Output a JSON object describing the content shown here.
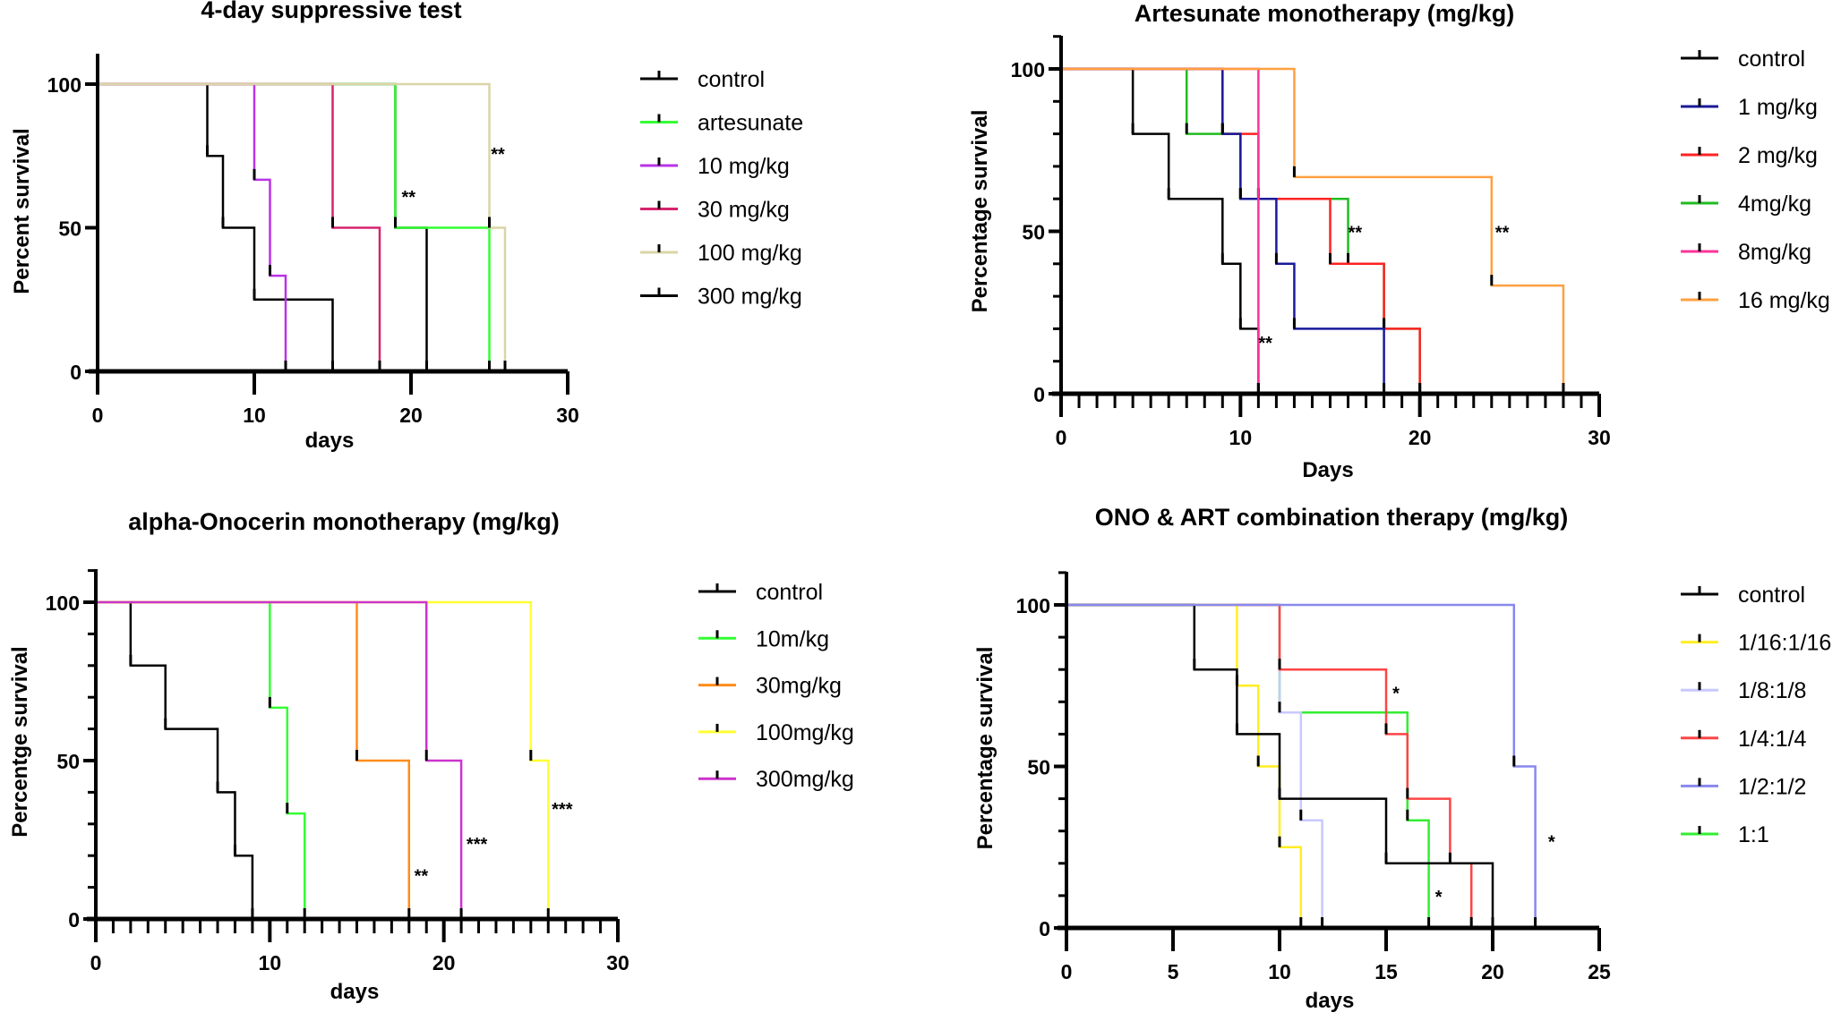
{
  "chart_data": [
    {
      "type": "line",
      "subtype": "kaplan-meier survival",
      "title": "4-day suppressive test",
      "xlabel": "days",
      "ylabel": "Percent survival",
      "xlim": [
        0,
        30
      ],
      "ylim": [
        0,
        100
      ],
      "xticks": [
        "0",
        "10",
        "20",
        "30"
      ],
      "yticks": [
        "0",
        "50",
        "100"
      ],
      "legend_position": "right",
      "series": [
        {
          "name": "control",
          "color": "#000000",
          "steps": [
            [
              0,
              100
            ],
            [
              7,
              75
            ],
            [
              8,
              50
            ],
            [
              10,
              25
            ],
            [
              15,
              0
            ]
          ]
        },
        {
          "name": "300 mg/kg",
          "color": "#000000",
          "steps": [
            [
              0,
              100
            ],
            [
              19,
              50
            ],
            [
              21,
              0
            ]
          ]
        },
        {
          "name": "artesunate",
          "color": "#33ff33",
          "steps": [
            [
              0,
              100
            ],
            [
              19,
              50
            ],
            [
              25,
              0
            ]
          ]
        },
        {
          "name": "10 mg/kg",
          "color": "#b833e6",
          "steps": [
            [
              0,
              100
            ],
            [
              10,
              66.7
            ],
            [
              11,
              33.3
            ],
            [
              12,
              0
            ]
          ]
        },
        {
          "name": "30 mg/kg",
          "color": "#d6246e",
          "steps": [
            [
              0,
              100
            ],
            [
              15,
              50
            ],
            [
              18,
              0
            ]
          ]
        },
        {
          "name": "100 mg/kg",
          "color": "#d9d5a7",
          "steps": [
            [
              0,
              100
            ],
            [
              25,
              50
            ],
            [
              26,
              0
            ]
          ]
        }
      ],
      "legend_order": [
        "control",
        "artesunate",
        "10 mg/kg",
        "30 mg/kg",
        "100 mg/kg",
        "300 mg/kg"
      ],
      "annotations": [
        {
          "text": "**",
          "x": 19.4,
          "y": 61
        },
        {
          "text": "**",
          "x": 25.1,
          "y": 76
        }
      ]
    },
    {
      "type": "line",
      "subtype": "kaplan-meier survival",
      "title": "Artesunate monotherapy (mg/kg)",
      "xlabel": "Days",
      "ylabel": "Percentage survival",
      "xlim": [
        0,
        30
      ],
      "ylim": [
        0,
        100
      ],
      "xticks": [
        "0",
        "10",
        "20",
        "30"
      ],
      "yticks": [
        "0",
        "50",
        "100"
      ],
      "legend_position": "right",
      "series": [
        {
          "name": "4mg/kg",
          "color": "#22bb22",
          "steps": [
            [
              0,
              100
            ],
            [
              7,
              80
            ],
            [
              10,
              60
            ],
            [
              16,
              40
            ],
            [
              18,
              20
            ],
            [
              20,
              0
            ]
          ]
        },
        {
          "name": "2 mg/kg",
          "color": "#ff2222",
          "steps": [
            [
              0,
              100
            ],
            [
              9,
              80
            ],
            [
              11,
              60
            ],
            [
              15,
              40
            ],
            [
              18,
              20
            ],
            [
              20,
              0
            ]
          ]
        },
        {
          "name": "1 mg/kg",
          "color": "#1a1a99",
          "steps": [
            [
              0,
              100
            ],
            [
              9,
              80
            ],
            [
              10,
              60
            ],
            [
              12,
              40
            ],
            [
              13,
              20
            ],
            [
              18,
              0
            ]
          ]
        },
        {
          "name": "control",
          "color": "#000000",
          "steps": [
            [
              0,
              100
            ],
            [
              4,
              80
            ],
            [
              6,
              60
            ],
            [
              9,
              40
            ],
            [
              10,
              20
            ],
            [
              11,
              0
            ]
          ]
        },
        {
          "name": "8mg/kg",
          "color": "#ff3399",
          "steps": [
            [
              0,
              100
            ],
            [
              11,
              0
            ]
          ]
        },
        {
          "name": "16 mg/kg",
          "color": "#ffa040",
          "steps": [
            [
              0,
              100
            ],
            [
              13,
              66.7
            ],
            [
              24,
              33.3
            ],
            [
              28,
              0
            ]
          ]
        }
      ],
      "legend_order": [
        "control",
        "1 mg/kg",
        "2 mg/kg",
        "4mg/kg",
        "8mg/kg",
        "16 mg/kg"
      ],
      "annotations": [
        {
          "text": "**",
          "x": 11.0,
          "y": 16
        },
        {
          "text": "**",
          "x": 16.0,
          "y": 50
        },
        {
          "text": "**",
          "x": 24.2,
          "y": 50
        }
      ]
    },
    {
      "type": "line",
      "subtype": "kaplan-meier survival",
      "title": "alpha-Onocerin monotherapy (mg/kg)",
      "xlabel": "days",
      "ylabel": "Percentge survival",
      "xlim": [
        0,
        30
      ],
      "ylim": [
        0,
        100
      ],
      "xticks": [
        "0",
        "10",
        "20",
        "30"
      ],
      "yticks": [
        "0",
        "50",
        "100"
      ],
      "legend_position": "right",
      "series": [
        {
          "name": "control",
          "color": "#000000",
          "steps": [
            [
              0,
              100
            ],
            [
              2,
              80
            ],
            [
              4,
              60
            ],
            [
              7,
              40
            ],
            [
              8,
              20
            ],
            [
              9,
              0
            ]
          ]
        },
        {
          "name": "10m/kg",
          "color": "#33ff33",
          "steps": [
            [
              0,
              100
            ],
            [
              10,
              66.7
            ],
            [
              11,
              33.3
            ],
            [
              12,
              0
            ]
          ]
        },
        {
          "name": "30mg/kg",
          "color": "#ff8c1a",
          "steps": [
            [
              0,
              100
            ],
            [
              15,
              50
            ],
            [
              18,
              0
            ]
          ]
        },
        {
          "name": "100mg/kg",
          "color": "#ffff33",
          "steps": [
            [
              0,
              100
            ],
            [
              25,
              50
            ],
            [
              26,
              0
            ]
          ]
        },
        {
          "name": "300mg/kg",
          "color": "#cc33cc",
          "steps": [
            [
              0,
              100
            ],
            [
              19,
              50
            ],
            [
              21,
              0
            ]
          ]
        }
      ],
      "legend_order": [
        "control",
        "10m/kg",
        "30mg/kg",
        "100mg/kg",
        "300mg/kg"
      ],
      "annotations": [
        {
          "text": "**",
          "x": 18.3,
          "y": 14
        },
        {
          "text": "***",
          "x": 21.3,
          "y": 24
        },
        {
          "text": "***",
          "x": 26.2,
          "y": 35
        }
      ]
    },
    {
      "type": "line",
      "subtype": "kaplan-meier survival",
      "title": "ONO & ART combination therapy (mg/kg)",
      "xlabel": "days",
      "ylabel": "Percentage survival",
      "xlim": [
        0,
        25
      ],
      "ylim": [
        0,
        100
      ],
      "xticks": [
        "0",
        "5",
        "10",
        "15",
        "20",
        "25"
      ],
      "yticks": [
        "0",
        "50",
        "100"
      ],
      "legend_position": "right",
      "series": [
        {
          "name": "1:1",
          "color": "#33ee33",
          "steps": [
            [
              0,
              100
            ],
            [
              10,
              66.7
            ],
            [
              16,
              33.3
            ],
            [
              17,
              0
            ]
          ]
        },
        {
          "name": "1/8:1/8",
          "color": "#c8c8ff",
          "steps": [
            [
              0,
              100
            ],
            [
              10,
              66.7
            ],
            [
              11,
              33.3
            ],
            [
              12,
              0
            ]
          ]
        },
        {
          "name": "1/4:1/4",
          "color": "#ff4444",
          "steps": [
            [
              0,
              100
            ],
            [
              10,
              80
            ],
            [
              15,
              60
            ],
            [
              16,
              40
            ],
            [
              18,
              20
            ],
            [
              19,
              0
            ]
          ]
        },
        {
          "name": "1/16:1/16",
          "color": "#ffee22",
          "steps": [
            [
              0,
              100
            ],
            [
              8,
              75
            ],
            [
              9,
              50
            ],
            [
              10,
              25
            ],
            [
              11,
              0
            ]
          ]
        },
        {
          "name": "control",
          "color": "#000000",
          "steps": [
            [
              0,
              100
            ],
            [
              6,
              80
            ],
            [
              8,
              60
            ],
            [
              10,
              40
            ],
            [
              15,
              20
            ],
            [
              20,
              0
            ]
          ]
        },
        {
          "name": "1/2:1/2",
          "color": "#8888ee",
          "steps": [
            [
              0,
              100
            ],
            [
              21,
              50
            ],
            [
              22,
              0
            ]
          ]
        }
      ],
      "legend_order": [
        "control",
        "1/16:1/16",
        "1/8:1/8",
        "1/4:1/4",
        "1/2:1/2",
        "1:1"
      ],
      "annotations": [
        {
          "text": "*",
          "x": 15.3,
          "y": 73
        },
        {
          "text": "*",
          "x": 17.3,
          "y": 10
        },
        {
          "text": "*",
          "x": 22.6,
          "y": 27
        }
      ]
    }
  ]
}
